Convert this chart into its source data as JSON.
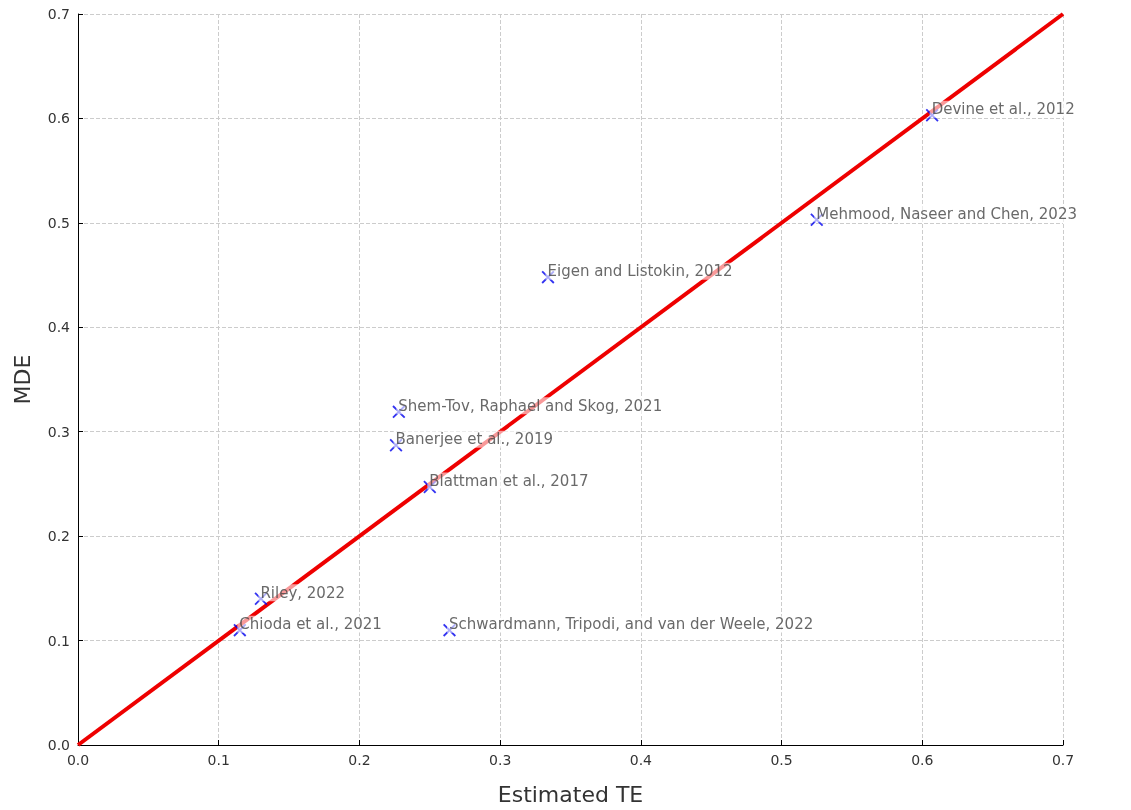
{
  "chart_data": {
    "type": "scatter",
    "xlabel": "Estimated TE",
    "ylabel": "MDE",
    "xlim": [
      0,
      0.7
    ],
    "xticks": [
      {
        "value": 0,
        "label": "0.0"
      },
      0.1,
      0.2,
      0.3,
      0.4,
      0.5,
      0.6,
      0.7
    ],
    "ylim": [
      0,
      0.7
    ],
    "yticks": [
      {
        "value": 0,
        "label": "0.0"
      },
      0.1,
      0.2,
      0.3,
      0.4,
      0.5,
      0.6,
      0.7
    ],
    "grid": true,
    "marker": "cross",
    "series": [
      {
        "color": "#0000ee",
        "x": [
          0.607,
          0.525,
          0.334,
          0.228,
          0.226,
          0.25,
          0.13,
          0.115,
          0.264
        ],
        "values": [
          0.603,
          0.503,
          0.448,
          0.319,
          0.287,
          0.247,
          0.14,
          0.11,
          0.11
        ]
      },
      {
        "type": "line",
        "color": "#ee0000",
        "marker": "none",
        "line_style": "solid",
        "x": [
          0,
          0.7
        ],
        "values": [
          0,
          0.7
        ]
      }
    ],
    "annotations": [
      {
        "text": "Devine et al., 2012",
        "x": 0.607,
        "y": 0.603
      },
      {
        "text": "Mehmood, Naseer and Chen, 2023",
        "x": 0.525,
        "y": 0.503
      },
      {
        "text": "Eigen and Listokin, 2012",
        "x": 0.334,
        "y": 0.448
      },
      {
        "text": "Shem-Tov, Raphael and Skog, 2021",
        "x": 0.228,
        "y": 0.319
      },
      {
        "text": "Banerjee et al., 2019",
        "x": 0.226,
        "y": 0.287
      },
      {
        "text": "Blattman et al., 2017",
        "x": 0.25,
        "y": 0.247
      },
      {
        "text": "Riley, 2022",
        "x": 0.13,
        "y": 0.14
      },
      {
        "text": "Chioda et al., 2021",
        "x": 0.115,
        "y": 0.11
      },
      {
        "text": "Schwardmann, Tripodi, and van der Weele, 2022",
        "x": 0.264,
        "y": 0.11
      }
    ]
  }
}
